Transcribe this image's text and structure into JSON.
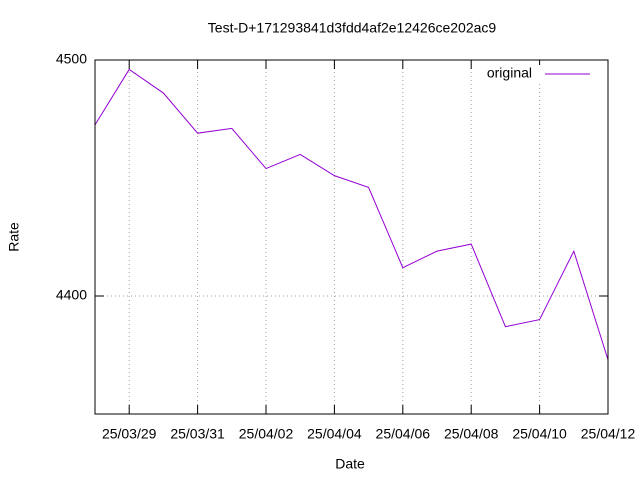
{
  "chart_data": {
    "type": "line",
    "title": "Test-D+171293841d3fdd4af2e12426ce202ac9",
    "x_label": "Date",
    "y_label": "Rate",
    "x": [
      "25/03/28",
      "25/03/29",
      "25/03/30",
      "25/03/31",
      "25/04/01",
      "25/04/02",
      "25/04/03",
      "25/04/04",
      "25/04/05",
      "25/04/06",
      "25/04/07",
      "25/04/08",
      "25/04/09",
      "25/04/10",
      "25/04/11",
      "25/04/12"
    ],
    "series": [
      {
        "name": "original",
        "color": "#9400d3",
        "values": [
          4472.5,
          4496,
          4486,
          4469,
          4471,
          4454,
          4460,
          4451,
          4446,
          4412,
          4419,
          4422,
          4387,
          4390,
          4419,
          4373
        ]
      }
    ],
    "xlim": [
      "25/03/28",
      "25/04/12"
    ],
    "xticks": [
      "25/03/29",
      "25/03/31",
      "25/04/02",
      "25/04/04",
      "25/04/06",
      "25/04/08",
      "25/04/10",
      "25/04/12"
    ],
    "ylim": [
      4350,
      4500
    ],
    "yticks": [
      4400,
      4500
    ],
    "grid": true,
    "legend": "top-right"
  }
}
